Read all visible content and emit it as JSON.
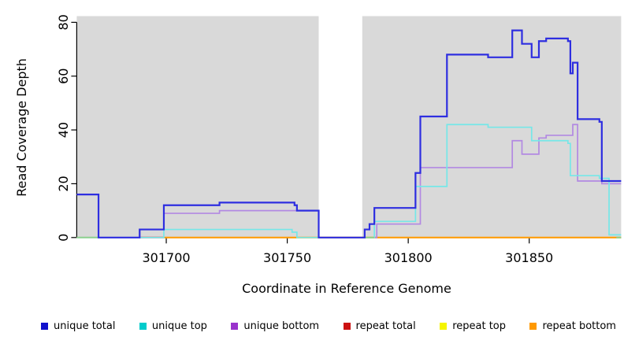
{
  "chart_data": {
    "type": "line",
    "title": "",
    "xlabel": "Coordinate in Reference Genome",
    "ylabel": "Read Coverage Depth",
    "xlim": [
      301663,
      301888
    ],
    "ylim": [
      0,
      82.3
    ],
    "x_ticks": [
      301700,
      301750,
      301800,
      301850
    ],
    "y_ticks": [
      0,
      20,
      40,
      60,
      80
    ],
    "plot_bg": "#d9d9d9",
    "grid": false,
    "legend_position": "bottom",
    "gap_region": {
      "x_start": 301763,
      "x_end": 301781,
      "color": "#ffffff"
    },
    "series": [
      {
        "name": "unique total",
        "color": "#2e2ee0",
        "width": 2.2,
        "z": 7,
        "points": [
          [
            301663,
            16
          ],
          [
            301672,
            0
          ],
          [
            301689,
            3
          ],
          [
            301699,
            12
          ],
          [
            301722,
            13
          ],
          [
            301753,
            12
          ],
          [
            301754,
            10
          ],
          [
            301763,
            0
          ],
          [
            301782,
            3
          ],
          [
            301784,
            5
          ],
          [
            301786,
            11
          ],
          [
            301803,
            24
          ],
          [
            301805,
            45
          ],
          [
            301816,
            68
          ],
          [
            301833,
            67
          ],
          [
            301843,
            77
          ],
          [
            301847,
            72
          ],
          [
            301851,
            67
          ],
          [
            301854,
            73
          ],
          [
            301857,
            74
          ],
          [
            301866,
            73
          ],
          [
            301867,
            61
          ],
          [
            301868,
            65
          ],
          [
            301870,
            44
          ],
          [
            301879,
            43
          ],
          [
            301880,
            21
          ],
          [
            301888,
            21
          ]
        ]
      },
      {
        "name": "unique top",
        "color": "#76e7e8",
        "width": 1.7,
        "z": 6,
        "points": [
          [
            301663,
            0
          ],
          [
            301699,
            3
          ],
          [
            301752,
            2
          ],
          [
            301754,
            0
          ],
          [
            301786,
            6
          ],
          [
            301803,
            19
          ],
          [
            301816,
            42
          ],
          [
            301833,
            41
          ],
          [
            301851,
            36
          ],
          [
            301866,
            35
          ],
          [
            301867,
            23
          ],
          [
            301879,
            22
          ],
          [
            301883,
            1
          ],
          [
            301888,
            1
          ]
        ]
      },
      {
        "name": "unique bottom",
        "color": "#b289e2",
        "width": 1.7,
        "z": 5,
        "points": [
          [
            301663,
            16
          ],
          [
            301672,
            0
          ],
          [
            301689,
            3
          ],
          [
            301699,
            9
          ],
          [
            301722,
            10
          ],
          [
            301754,
            10
          ],
          [
            301763,
            0
          ],
          [
            301787,
            5
          ],
          [
            301805,
            26
          ],
          [
            301843,
            36
          ],
          [
            301847,
            31
          ],
          [
            301854,
            37
          ],
          [
            301857,
            38
          ],
          [
            301868,
            42
          ],
          [
            301870,
            21
          ],
          [
            301880,
            20
          ],
          [
            301888,
            20
          ]
        ]
      },
      {
        "name": "repeat total",
        "color": "#cc4455",
        "width": 2.0,
        "z": 3,
        "points": [
          [
            301689,
            0
          ],
          [
            301699,
            0
          ]
        ]
      },
      {
        "name": "repeat top",
        "color": "#eded4d",
        "width": 1.5,
        "z": 2,
        "points": [
          [
            301663,
            0
          ],
          [
            301699,
            0
          ]
        ]
      },
      {
        "name": "repeat bottom",
        "color": "#ff9d0a",
        "width": 2.2,
        "z": 1,
        "points": [
          [
            301699,
            0
          ],
          [
            301888,
            0
          ]
        ]
      }
    ],
    "baseline_overlaps": [
      {
        "name": "left-overlap",
        "color": "#8fd08f",
        "width": 2.0,
        "z": 6.5,
        "points": [
          [
            301663,
            0
          ],
          [
            301672,
            0
          ]
        ]
      },
      {
        "name": "post-gap-overlap",
        "color": "#8fd08f",
        "width": 2.0,
        "z": 6.5,
        "points": [
          [
            301781,
            0
          ],
          [
            301786,
            0
          ]
        ]
      },
      {
        "name": "right-corner-overlap",
        "color": "#8fd08f",
        "width": 2.0,
        "z": 6.5,
        "points": [
          [
            301886,
            0
          ],
          [
            301888,
            0
          ]
        ]
      }
    ]
  },
  "legend": {
    "items": [
      {
        "label": "unique total",
        "color": "#1111cc"
      },
      {
        "label": "unique top",
        "color": "#00cccc"
      },
      {
        "label": "unique bottom",
        "color": "#9933cc"
      },
      {
        "label": "repeat total",
        "color": "#cc1111"
      },
      {
        "label": "repeat top",
        "color": "#f5f500"
      },
      {
        "label": "repeat bottom",
        "color": "#ff9900"
      }
    ]
  }
}
